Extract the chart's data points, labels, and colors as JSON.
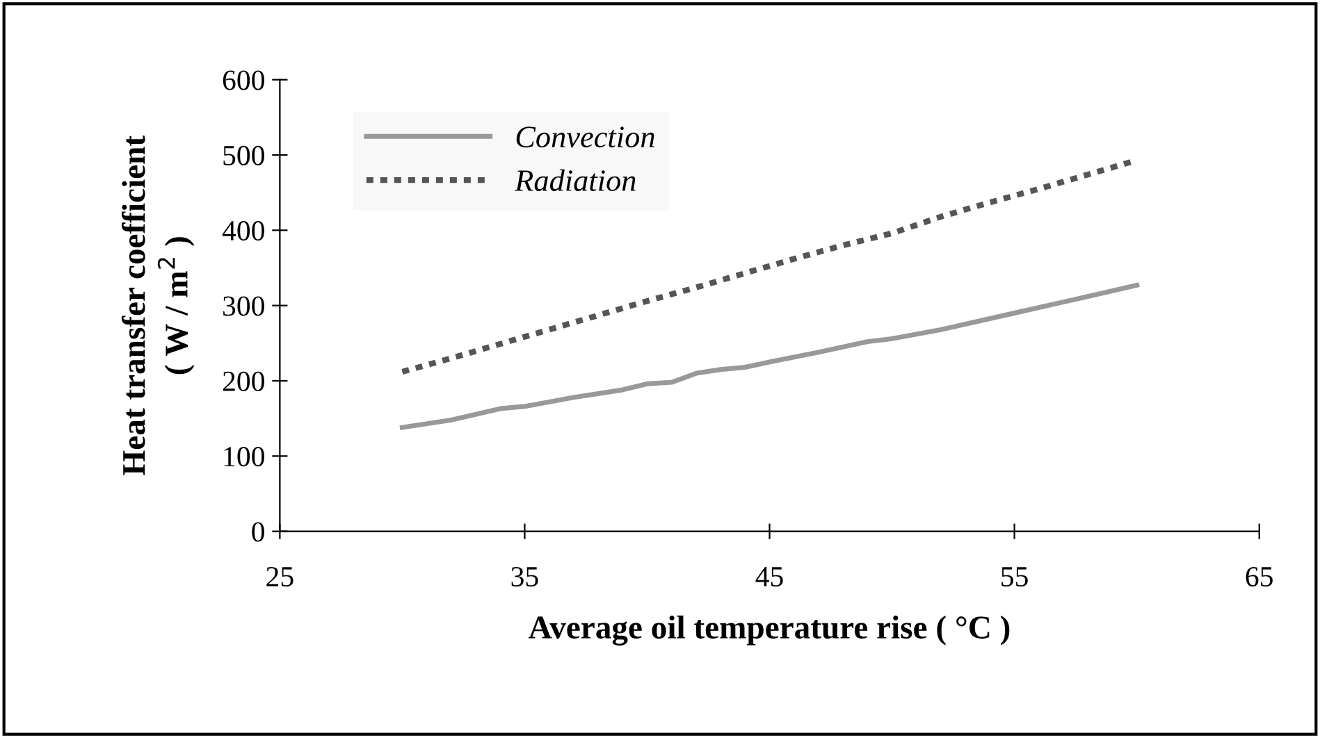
{
  "chart_data": {
    "type": "line",
    "xlabel": "Average oil temperature rise ( °C )",
    "ylabel": "Heat transfer coefficient\n( W / m$^{2}$ )",
    "xlim": [
      25,
      65
    ],
    "xticks": [
      25,
      35,
      45,
      55,
      65
    ],
    "ylim": [
      0,
      600
    ],
    "yticks": [
      0,
      100,
      200,
      300,
      400,
      500,
      600
    ],
    "grid": false,
    "legend": "top left",
    "series": [
      {
        "name": "Convection",
        "color": "#999999",
        "line_style": "solid",
        "x": [
          30,
          32,
          34,
          35,
          37,
          39,
          40,
          41,
          42,
          43,
          44,
          45,
          47,
          49,
          50,
          52,
          55,
          58,
          60
        ],
        "values": [
          138,
          148,
          163,
          166,
          178,
          188,
          196,
          198,
          210,
          215,
          218,
          225,
          238,
          252,
          256,
          268,
          290,
          312,
          327
        ]
      },
      {
        "name": "Radiation",
        "color": "#555555",
        "line_style": "dotted",
        "x": [
          30,
          32,
          34,
          36,
          38,
          40,
          42,
          44,
          46,
          48,
          50,
          52,
          54,
          56,
          58,
          60
        ],
        "values": [
          212,
          230,
          249,
          268,
          287,
          306,
          324,
          343,
          362,
          380,
          396,
          418,
          437,
          455,
          474,
          493
        ]
      }
    ]
  }
}
